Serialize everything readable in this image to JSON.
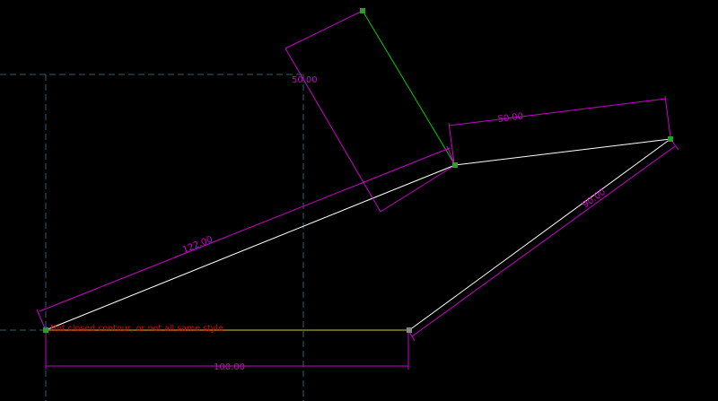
{
  "colors": {
    "background": "#000000",
    "geometry": "#ffffff",
    "dimension": "#cc00cc",
    "guide": "#2f5f6f",
    "highlight": "#00cc00",
    "error": "#dd0000",
    "point": "#2f9a2f"
  },
  "dimensions": {
    "dim_122": "122.00",
    "dim_50_slanted": "50.00",
    "dim_50_top": "50.00",
    "dim_90": "90.00",
    "dim_100": "100.00"
  },
  "warning": "Not closed contour, or not all same style"
}
